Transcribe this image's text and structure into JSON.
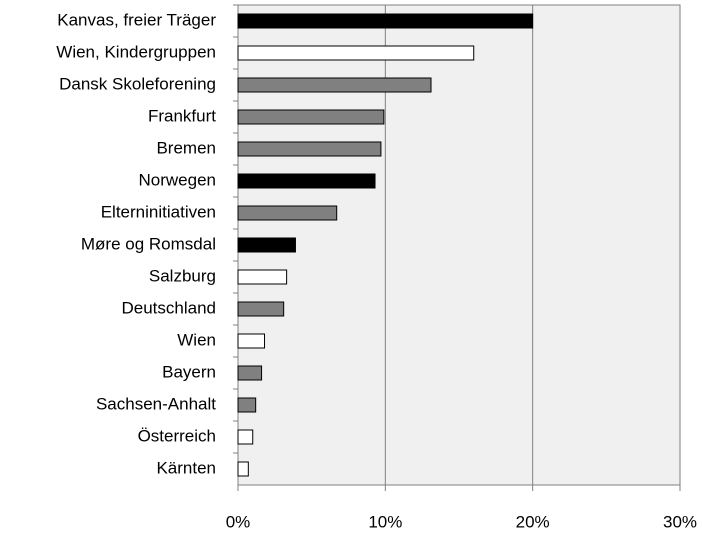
{
  "chart_data": {
    "type": "hbar",
    "categories": [
      "Kanvas, freier Träger",
      "Wien, Kindergruppen",
      "Dansk Skoleforening",
      "Frankfurt",
      "Bremen",
      "Norwegen",
      "Elterninitiativen",
      "Møre og Romsdal",
      "Salzburg",
      "Deutschland",
      "Wien",
      "Bayern",
      "Sachsen-Anhalt",
      "Österreich",
      "Kärnten"
    ],
    "values": [
      20.0,
      16.0,
      13.1,
      9.9,
      9.7,
      9.3,
      6.7,
      3.9,
      3.3,
      3.1,
      1.8,
      1.6,
      1.2,
      1.0,
      0.7
    ],
    "colors": [
      "#000000",
      "#ffffff",
      "#808080",
      "#808080",
      "#808080",
      "#000000",
      "#808080",
      "#000000",
      "#ffffff",
      "#808080",
      "#ffffff",
      "#808080",
      "#808080",
      "#ffffff",
      "#ffffff"
    ],
    "xlim": [
      0,
      30
    ],
    "xticks": [
      {
        "value": 0,
        "label": "0%"
      },
      {
        "value": 10,
        "label": "10%"
      },
      {
        "value": 20,
        "label": "20%"
      },
      {
        "value": 30,
        "label": "30%"
      }
    ],
    "grid": true
  }
}
